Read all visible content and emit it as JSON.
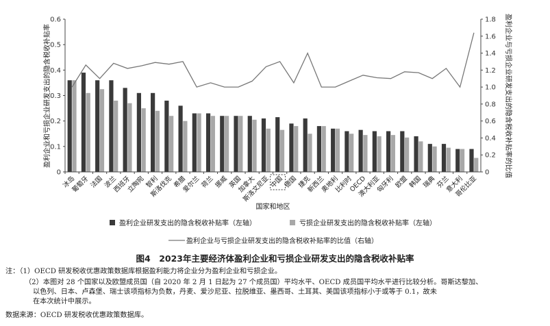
{
  "chart_data": {
    "type": "bar",
    "categories": [
      "冰岛",
      "葡萄牙",
      "法国",
      "波兰",
      "西班牙",
      "立陶宛",
      "智利",
      "斯洛伐克",
      "希腊",
      "爱尔兰",
      "荷兰",
      "挪威",
      "英国",
      "加拿大",
      "斯洛文尼亚",
      "中国",
      "德国",
      "捷克",
      "新西兰",
      "奥地利",
      "比利时",
      "OECD",
      "澳大利亚",
      "匈牙利",
      "欧盟",
      "韩国",
      "瑞典",
      "芬兰",
      "意大利",
      "哥伦比亚"
    ],
    "highlight_category": "中国",
    "xlabel": "国家和地区",
    "ylabel_left": "盈利企业和亏损企业研发支出的隐含税收补贴率",
    "ylabel_right": "盈利企业与亏损企业研发支出的隐含税收补贴率的比值",
    "ylim_left": [
      0,
      0.6
    ],
    "yticks_left": [
      "0",
      "0.1",
      "0.2",
      "0.3",
      "0.4",
      "0.5",
      "0.6"
    ],
    "ylim_right": [
      0,
      1.8
    ],
    "yticks_right": [
      "0",
      "0.2",
      "0.4",
      "0.6",
      "0.8",
      "1.0",
      "1.2",
      "1.4",
      "1.6",
      "1.8"
    ],
    "grid": false,
    "legend_position": "bottom",
    "series": [
      {
        "name": "盈利企业研发支出的隐含税收补贴率（左轴）",
        "kind": "bar",
        "axis": "left",
        "color": "#3a3a3a",
        "values": [
          0.36,
          0.39,
          0.36,
          0.36,
          0.33,
          0.31,
          0.31,
          0.28,
          0.26,
          0.23,
          0.23,
          0.22,
          0.22,
          0.22,
          0.21,
          0.215,
          0.19,
          0.21,
          0.18,
          0.17,
          0.16,
          0.165,
          0.16,
          0.16,
          0.16,
          0.14,
          0.11,
          0.11,
          0.09,
          0.09
        ]
      },
      {
        "name": "亏损企业研发支出的隐含税收补贴率（左轴）",
        "kind": "bar",
        "axis": "left",
        "color": "#a8a8a8",
        "values": [
          0.36,
          0.31,
          0.325,
          0.28,
          0.27,
          0.25,
          0.24,
          0.22,
          0.2,
          0.23,
          0.22,
          0.22,
          0.22,
          0.205,
          0.17,
          0.165,
          0.18,
          0.15,
          0.18,
          0.17,
          0.15,
          0.145,
          0.14,
          0.145,
          0.135,
          0.12,
          0.1,
          0.095,
          0.09,
          0.055
        ]
      },
      {
        "name": "盈利企业与亏损企业研发支出的隐含税收补贴率的比值（右轴）",
        "kind": "line",
        "axis": "right",
        "color": "#777777",
        "values": [
          1.0,
          1.26,
          1.1,
          1.28,
          1.22,
          1.25,
          1.29,
          1.27,
          1.3,
          1.0,
          1.05,
          1.0,
          1.0,
          1.07,
          1.24,
          1.3,
          1.05,
          1.4,
          1.0,
          1.0,
          1.07,
          1.14,
          1.11,
          1.1,
          1.18,
          1.17,
          1.1,
          1.22,
          1.0,
          1.64
        ]
      }
    ]
  },
  "figure_title": "图4　2023年主要经济体盈利企业和亏损企业研发支出的隐含税收补贴率",
  "notes": [
    "注：（1）OECD 研发税收优惠政策数据库根据盈利能力将企业分为盈利企业和亏损企业。",
    "（2）本图对 28 个国家以及欧盟成员国（自 2020 年 2 月 1 日起为 27 个成员国）平均水平、OECD 成员国平均水平进行比较分析。哥斯达黎加、",
    "以色列、日本、卢森堡、瑞士该项指标为负数，丹麦、爱沙尼亚、拉脱维亚、墨西哥、土耳其、美国该项指标小于或等于 0.1，故未",
    "在本次统计中展示。",
    "数据来源：OECD 研发税收优惠政策数据库。"
  ]
}
